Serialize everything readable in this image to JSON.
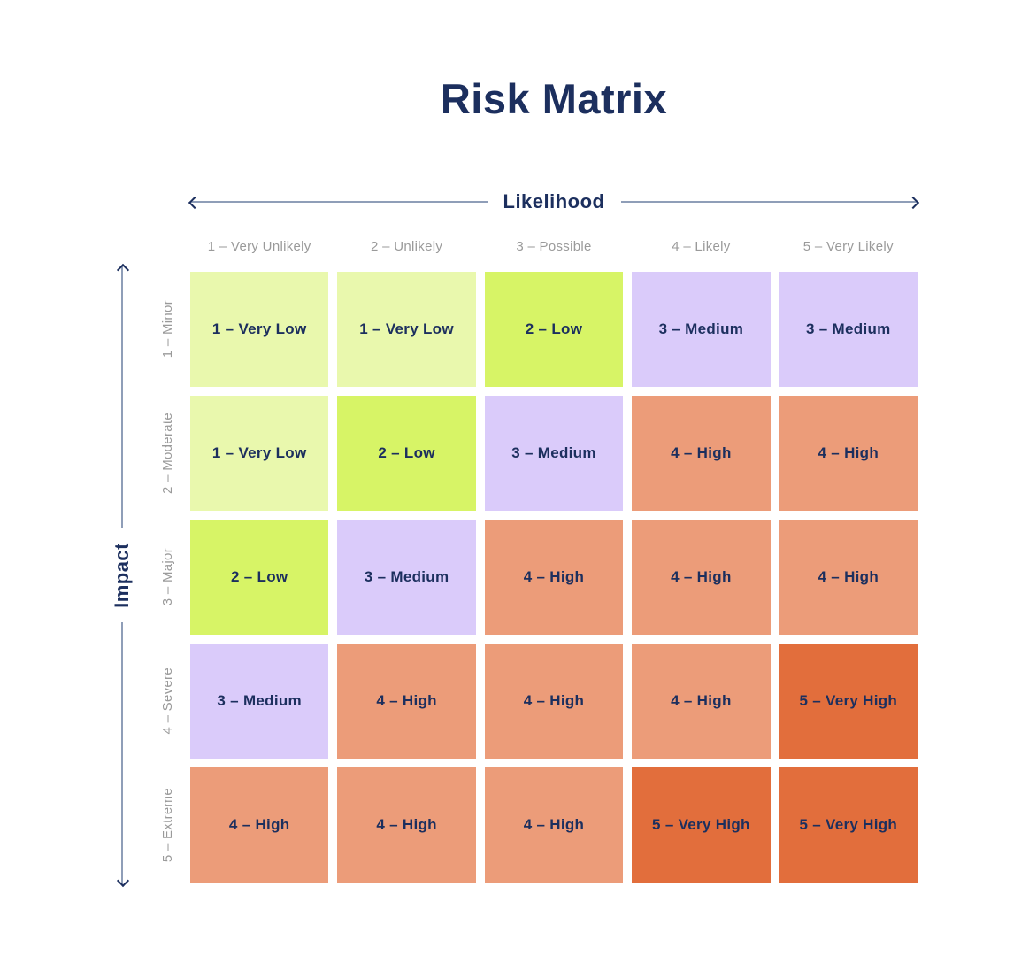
{
  "title": "Risk Matrix",
  "colors": {
    "navy": "#1c2f5e",
    "gray_label": "#9a9a9a",
    "axis_line": "#8f9eb8",
    "very_low": "#e9f8ad",
    "low": "#d7f466",
    "medium": "#dacbfa",
    "high": "#ec9c79",
    "very_high": "#e26e3c"
  },
  "chart_data": {
    "type": "heatmap",
    "title": "Risk Matrix",
    "xlabel": "Likelihood",
    "ylabel": "Impact",
    "legend": "none",
    "grid": "off",
    "x_categories": [
      "1 – Very Unlikely",
      "2 – Unlikely",
      "3 – Possible",
      "4 – Likely",
      "5 – Very Likely"
    ],
    "y_categories": [
      "1 – Minor",
      "2 – Moderate",
      "3 – Major",
      "4 – Severe",
      "5 – Extreme"
    ],
    "cells": [
      [
        {
          "label": "1 – Very Low",
          "score": 1,
          "level": "very_low"
        },
        {
          "label": "1 – Very Low",
          "score": 1,
          "level": "very_low"
        },
        {
          "label": "2 – Low",
          "score": 2,
          "level": "low"
        },
        {
          "label": "3 – Medium",
          "score": 3,
          "level": "medium"
        },
        {
          "label": "3 – Medium",
          "score": 3,
          "level": "medium"
        }
      ],
      [
        {
          "label": "1 – Very Low",
          "score": 1,
          "level": "very_low"
        },
        {
          "label": "2 – Low",
          "score": 2,
          "level": "low"
        },
        {
          "label": "3 – Medium",
          "score": 3,
          "level": "medium"
        },
        {
          "label": "4 – High",
          "score": 4,
          "level": "high"
        },
        {
          "label": "4 – High",
          "score": 4,
          "level": "high"
        }
      ],
      [
        {
          "label": "2 – Low",
          "score": 2,
          "level": "low"
        },
        {
          "label": "3 – Medium",
          "score": 3,
          "level": "medium"
        },
        {
          "label": "4 – High",
          "score": 4,
          "level": "high"
        },
        {
          "label": "4 – High",
          "score": 4,
          "level": "high"
        },
        {
          "label": "4 – High",
          "score": 4,
          "level": "high"
        }
      ],
      [
        {
          "label": "3 – Medium",
          "score": 3,
          "level": "medium"
        },
        {
          "label": "4 – High",
          "score": 4,
          "level": "high"
        },
        {
          "label": "4 – High",
          "score": 4,
          "level": "high"
        },
        {
          "label": "4 – High",
          "score": 4,
          "level": "high"
        },
        {
          "label": "5 – Very High",
          "score": 5,
          "level": "very_high"
        }
      ],
      [
        {
          "label": "4 – High",
          "score": 4,
          "level": "high"
        },
        {
          "label": "4 – High",
          "score": 4,
          "level": "high"
        },
        {
          "label": "4 – High",
          "score": 4,
          "level": "high"
        },
        {
          "label": "5 – Very High",
          "score": 5,
          "level": "very_high"
        },
        {
          "label": "5 – Very High",
          "score": 5,
          "level": "very_high"
        }
      ]
    ]
  }
}
